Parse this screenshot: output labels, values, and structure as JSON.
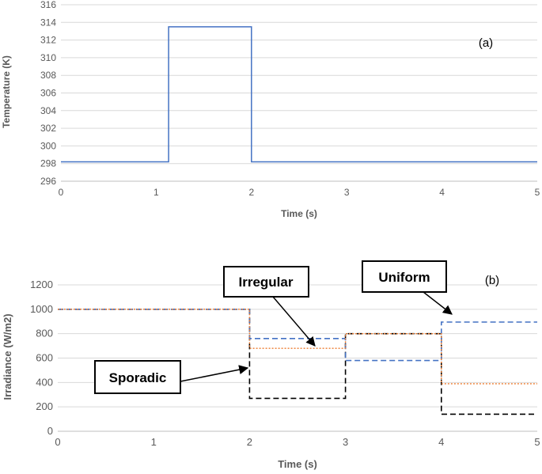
{
  "chart_data": [
    {
      "type": "line",
      "panel_label": "(a)",
      "xlabel": "Time (s)",
      "ylabel": "Temperature (K)",
      "xlim": [
        0,
        5
      ],
      "ylim": [
        296,
        316
      ],
      "x_ticks": [
        0,
        1,
        2,
        3,
        4,
        5
      ],
      "y_ticks": [
        296,
        298,
        300,
        302,
        304,
        306,
        308,
        310,
        312,
        314,
        316
      ],
      "grid": "horizontal",
      "series": [
        {
          "color": "#4472c4",
          "style": "solid",
          "points": [
            [
              0,
              298.2
            ],
            [
              1.13,
              298.2
            ],
            [
              1.13,
              313.5
            ],
            [
              2.0,
              313.5
            ],
            [
              2.0,
              298.2
            ],
            [
              5.0,
              298.2
            ]
          ]
        }
      ]
    },
    {
      "type": "line",
      "panel_label": "(b)",
      "xlabel": "Time (s)",
      "ylabel": "Irradiance (W/m2)",
      "xlim": [
        0,
        5
      ],
      "ylim": [
        0,
        1200
      ],
      "x_ticks": [
        0,
        1,
        2,
        3,
        4,
        5
      ],
      "y_ticks": [
        0,
        200,
        400,
        600,
        800,
        1000,
        1200
      ],
      "grid": "horizontal",
      "series": [
        {
          "color": "#000000",
          "style": "dashed",
          "points": [
            [
              0,
              1000
            ],
            [
              2,
              1000
            ],
            [
              2,
              270
            ],
            [
              3,
              270
            ],
            [
              3,
              800
            ],
            [
              4,
              800
            ],
            [
              4,
              140
            ],
            [
              5,
              140
            ]
          ]
        },
        {
          "color": "#4472c4",
          "style": "dashed",
          "points": [
            [
              0,
              1000
            ],
            [
              2,
              1000
            ],
            [
              2,
              760
            ],
            [
              3,
              760
            ],
            [
              3,
              580
            ],
            [
              4,
              580
            ],
            [
              4,
              895
            ],
            [
              5,
              895
            ]
          ]
        },
        {
          "color": "#ed7d31",
          "style": "dotted",
          "points": [
            [
              0,
              1000
            ],
            [
              2,
              1000
            ],
            [
              2,
              680
            ],
            [
              3,
              680
            ],
            [
              3,
              800
            ],
            [
              4,
              800
            ],
            [
              4,
              390
            ],
            [
              5,
              390
            ]
          ]
        }
      ],
      "annotations": [
        {
          "text": "Irregular",
          "target": [
            2.68,
            690
          ]
        },
        {
          "text": "Uniform",
          "target": [
            4.13,
            910
          ]
        },
        {
          "text": "Sporadic",
          "target": [
            1.98,
            500
          ]
        }
      ]
    }
  ]
}
